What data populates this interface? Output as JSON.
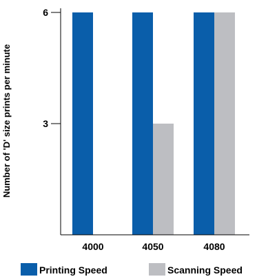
{
  "chart_data": {
    "type": "bar",
    "categories": [
      "4000",
      "4050",
      "4080"
    ],
    "series": [
      {
        "name": "Printing Speed",
        "values": [
          6,
          6,
          6
        ],
        "color": "#0A5EAA"
      },
      {
        "name": "Scanning Speed",
        "values": [
          null,
          3,
          6
        ],
        "color": "#BDBEC2"
      }
    ],
    "ylabel": "Number of 'D' size prints per minute",
    "xlabel": "",
    "yticks": [
      3,
      6
    ],
    "ylim": [
      0,
      6
    ],
    "legend_position": "bottom",
    "grid": false
  }
}
